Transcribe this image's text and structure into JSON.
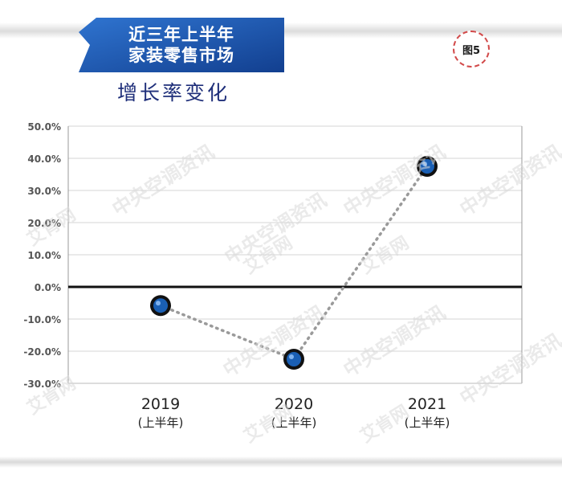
{
  "header": {
    "title_line1": "近三年上半年",
    "title_line2": "家装零售市场",
    "subtitle": "增长率变化",
    "figure_label": "图5",
    "banner_color": "#1c58b8"
  },
  "watermarks": {
    "brand_a": "中央空调资讯",
    "brand_b": "艾肯网"
  },
  "chart_data": {
    "type": "line",
    "title": "增长率变化",
    "categories": [
      "2019",
      "2020",
      "2021"
    ],
    "category_sublabels": [
      "(上半年)",
      "(上半年)",
      "(上半年)"
    ],
    "series": [
      {
        "values": [
          -5.8,
          -22.5,
          37.5
        ],
        "color": "#1a5fb4",
        "line_style": "dotted",
        "line_color": "#9a9a9a"
      }
    ],
    "ylim": [
      -30,
      50
    ],
    "yticks": [
      50,
      40,
      30,
      20,
      10,
      0,
      -10,
      -20,
      -30
    ],
    "ytick_labels": [
      "50.0%",
      "40.0%",
      "30.0%",
      "20.0%",
      "10.0%",
      "0.0%",
      "-10.0%",
      "-20.0%",
      "-30.0%"
    ],
    "grid": true,
    "zero_line": true,
    "xlabel": "",
    "ylabel": ""
  }
}
